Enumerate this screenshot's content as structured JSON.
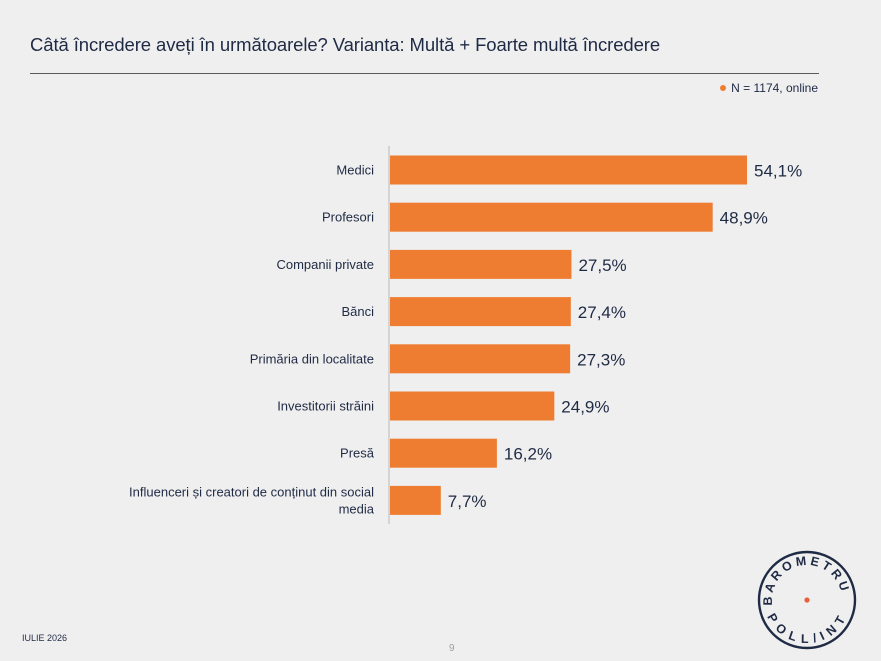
{
  "header": {
    "title": "Câtă încredere aveți în următoarele? Varianta: Multă + Foarte multă încredere"
  },
  "legend": {
    "text": "N = 1174, online",
    "dot_color": "#ee7d31"
  },
  "chart_data": {
    "type": "bar",
    "orientation": "horizontal",
    "categories": [
      "Medici",
      "Profesori",
      "Companii private",
      "Bănci",
      "Primăria din localitate",
      "Investitorii străini",
      "Presă",
      "Influenceri și creatori de conținut din social media"
    ],
    "values": [
      54.1,
      48.9,
      27.5,
      27.4,
      27.3,
      24.9,
      16.2,
      7.7
    ],
    "value_labels": [
      "54,1%",
      "48,9%",
      "27,5%",
      "27,4%",
      "27,3%",
      "24,9%",
      "16,2%",
      "7,7%"
    ],
    "bar_color": "#ee7d31",
    "xlim": [
      0,
      60
    ],
    "grid": false
  },
  "footer": {
    "date": "IULIE 2026",
    "page": "9"
  },
  "seal": {
    "top_text": "BAROMETRUL",
    "bottom_text": "POLL/INT",
    "color": "#1f2a44",
    "dot_color": "#e8603c"
  }
}
